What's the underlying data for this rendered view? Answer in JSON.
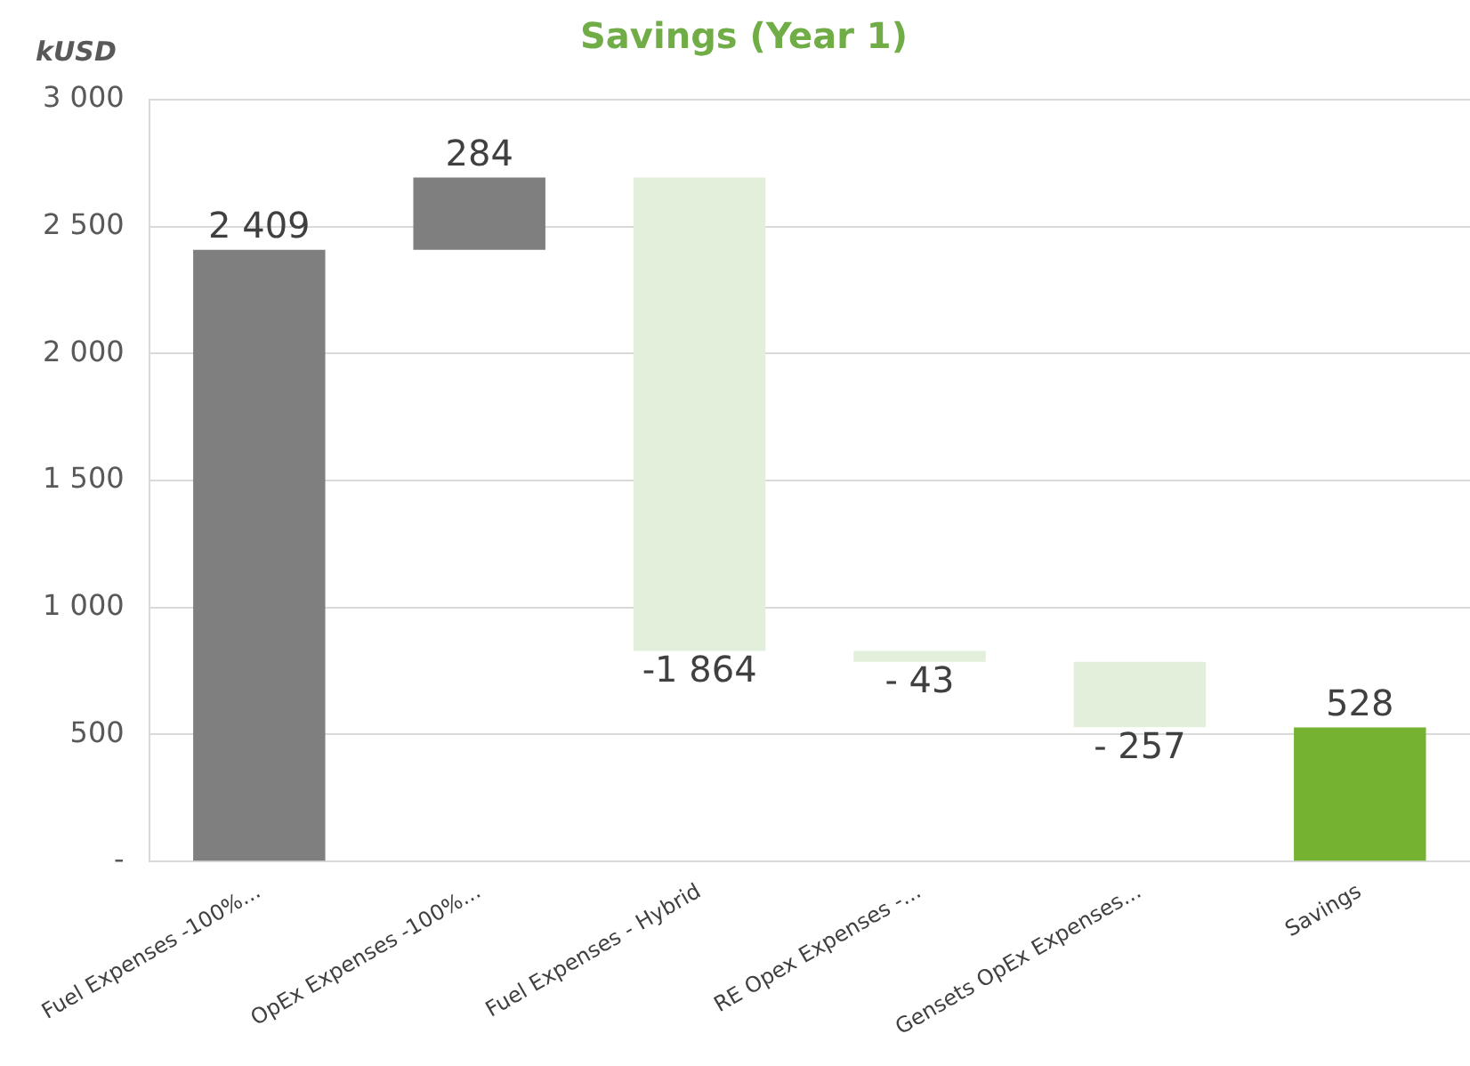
{
  "chart_data": {
    "type": "bar",
    "title": "Savings (Year 1)",
    "ylabel": "kUSD",
    "categories": [
      "Fuel Expenses -100%...",
      "OpEx Expenses -100%...",
      "Fuel Expenses - Hybrid",
      "RE Opex Expenses -...",
      "Gensets OpEx Expenses...",
      "Savings"
    ],
    "values": [
      2409,
      284,
      -1864,
      -43,
      -257,
      528
    ],
    "base": [
      0,
      2409,
      2693,
      829,
      786,
      0
    ],
    "colors": [
      "#7f7f7f",
      "#7f7f7f",
      "#e2efda",
      "#e2efda",
      "#e2efda",
      "#76b232"
    ],
    "value_labels": [
      "2 409",
      "284",
      "-1 864",
      "- 43",
      "- 257",
      "528"
    ],
    "ylim": [
      0,
      3000
    ],
    "yticks": [
      {
        "value": 0,
        "label": "-"
      },
      {
        "value": 500,
        "label": "500"
      },
      {
        "value": 1000,
        "label": "1 000"
      },
      {
        "value": 1500,
        "label": "1 500"
      },
      {
        "value": 2000,
        "label": "2 000"
      },
      {
        "value": 2500,
        "label": "2 500"
      },
      {
        "value": 3000,
        "label": "3 000"
      }
    ],
    "grid": "y",
    "legend": false
  }
}
